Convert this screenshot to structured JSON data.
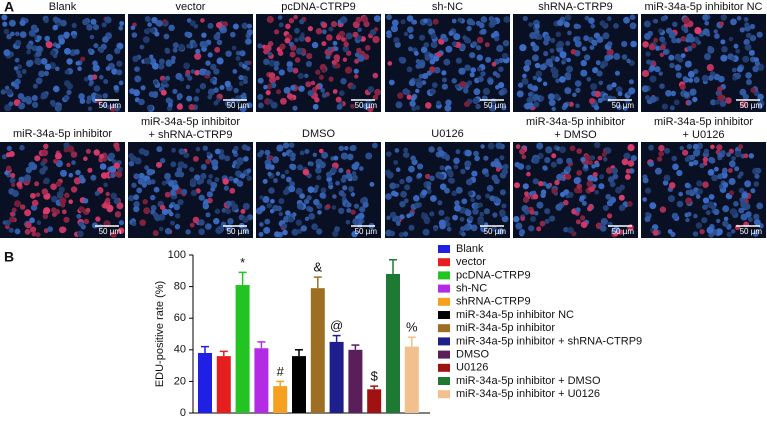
{
  "panel_a": {
    "label": "A",
    "images": [
      {
        "title": [
          "Blank"
        ],
        "scale": "50 µm"
      },
      {
        "title": [
          "vector"
        ],
        "scale": "50 µm"
      },
      {
        "title": [
          "pcDNA-CTRP9"
        ],
        "scale": "50 µm"
      },
      {
        "title": [
          "sh-NC"
        ],
        "scale": "50 µm"
      },
      {
        "title": [
          "shRNA-CTRP9"
        ],
        "scale": "50 µm"
      },
      {
        "title": [
          "miR-34a-5p inhibitor NC"
        ],
        "scale": "50 µm"
      },
      {
        "title": [
          "miR-34a-5p inhibitor"
        ],
        "scale": "50 µm"
      },
      {
        "title": [
          "miR-34a-5p inhibitor",
          "+ shRNA-CTRP9"
        ],
        "scale": "50 µm"
      },
      {
        "title": [
          "DMSO"
        ],
        "scale": "50 µm"
      },
      {
        "title": [
          "U0126"
        ],
        "scale": "50 µm"
      },
      {
        "title": [
          "miR-34a-5p inhibitor",
          "+ DMSO"
        ],
        "scale": "50 µm"
      },
      {
        "title": [
          "miR-34a-5p inhibitor",
          "+ U0126"
        ],
        "scale": "50 µm"
      }
    ]
  },
  "panel_b_label": "B",
  "chart_data": {
    "type": "bar",
    "ylabel": "EDU-positive rate (%)",
    "categories": [
      "Blank",
      "vector",
      "pcDNA-CTRP9",
      "sh-NC",
      "shRNA-CTRP9",
      "miR-34a-5p inhibitor NC",
      "miR-34a-5p inhibitor",
      "miR-34a-5p inhibitor + shRNA-CTRP9",
      "DMSO",
      "U0126",
      "miR-34a-5p inhibitor + DMSO",
      "miR-34a-5p inhibitor + U0126"
    ],
    "colors": [
      "#1f1fe6",
      "#e61e1e",
      "#22c322",
      "#b42be6",
      "#f5a01e",
      "#000000",
      "#9c6f22",
      "#1e1e8c",
      "#5a1e5a",
      "#a01212",
      "#1e7a32",
      "#f2c08c"
    ],
    "values": [
      38,
      36,
      81,
      41,
      17,
      36,
      79,
      45,
      40,
      15,
      88,
      42
    ],
    "errors": [
      4,
      3,
      8,
      4,
      3,
      4,
      7,
      4,
      3,
      2,
      9,
      6
    ],
    "annotations": [
      null,
      null,
      "*",
      null,
      "#",
      null,
      "&",
      "@",
      null,
      "$",
      null,
      "%"
    ],
    "ylim": [
      0,
      100
    ],
    "yticks": [
      0,
      20,
      40,
      60,
      80,
      100
    ]
  }
}
